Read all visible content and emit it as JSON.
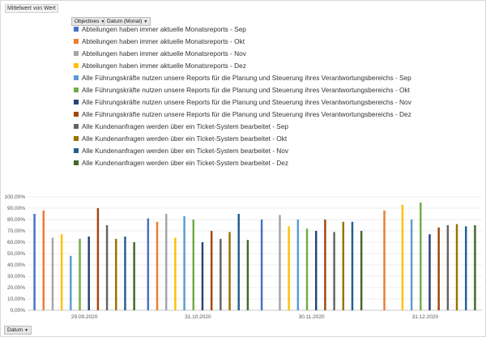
{
  "pivot": {
    "value_field": "Mittelwert von Wert",
    "column_fields": [
      {
        "label": "Objectives",
        "arrow": "▼"
      },
      {
        "label": "Datum (Monat)",
        "arrow": "▼"
      }
    ],
    "row_field": {
      "label": "Datum",
      "arrow": "▼"
    }
  },
  "chart_data": {
    "type": "bar",
    "categories": [
      "29.09.2020",
      "31.10.2020",
      "30.11.2020",
      "31.12.2020"
    ],
    "ylim": [
      0,
      100
    ],
    "yticks": [
      "0,00%",
      "10,00%",
      "20,00%",
      "30,00%",
      "40,00%",
      "50,00%",
      "60,00%",
      "70,00%",
      "80,00%",
      "90,00%",
      "100,00%"
    ],
    "legend_position": "top",
    "grid": true,
    "series": [
      {
        "name": "Abteilungen haben immer aktuelle Monatsreports - Sep",
        "color": "#4472c4",
        "values": [
          85,
          81,
          80,
          0
        ]
      },
      {
        "name": "Abteilungen haben immer aktuelle Monatsreports - Okt",
        "color": "#ed7d31",
        "values": [
          88,
          78,
          0,
          88
        ]
      },
      {
        "name": "Abteilungen haben immer aktuelle Monatsreports - Nov",
        "color": "#a5a5a5",
        "values": [
          64,
          85,
          84,
          0
        ]
      },
      {
        "name": "Abteilungen haben immer aktuelle Monatsreports - Dez",
        "color": "#ffc000",
        "values": [
          67,
          64,
          74,
          93
        ]
      },
      {
        "name": "Alle Führungskräfte nutzen unsere Reports für die Planung und Steuerung ihres Verantwortungsbereichs - Sep",
        "color": "#5b9bd5",
        "values": [
          48,
          83,
          80,
          80
        ]
      },
      {
        "name": "Alle Führungskräfte nutzen unsere Reports für die Planung und Steuerung ihres Verantwortungsbereichs - Okt",
        "color": "#70ad47",
        "values": [
          63,
          80,
          72,
          95
        ]
      },
      {
        "name": "Alle Führungskräfte nutzen unsere Reports für die Planung und Steuerung ihres Verantwortungsbereichs - Nov",
        "color": "#264478",
        "values": [
          65,
          60,
          70,
          67
        ]
      },
      {
        "name": "Alle Führungskräfte nutzen unsere Reports für die Planung und Steuerung ihres Verantwortungsbereichs - Dez",
        "color": "#9e480e",
        "values": [
          90,
          70,
          80,
          73
        ]
      },
      {
        "name": "Alle Kundenanfragen werden über ein Ticket-System bearbeitet - Sep",
        "color": "#636363",
        "values": [
          75,
          63,
          69,
          75
        ]
      },
      {
        "name": "Alle Kundenanfragen werden über ein Ticket-System bearbeitet - Okt",
        "color": "#997300",
        "values": [
          63,
          69,
          78,
          76
        ]
      },
      {
        "name": "Alle Kundenanfragen werden über ein Ticket-System bearbeitet - Nov",
        "color": "#255e91",
        "values": [
          65,
          85,
          78,
          74
        ]
      },
      {
        "name": "Alle Kundenanfragen werden über ein Ticket-System bearbeitet - Dez",
        "color": "#43682b",
        "values": [
          60,
          62,
          70,
          75
        ]
      }
    ]
  }
}
